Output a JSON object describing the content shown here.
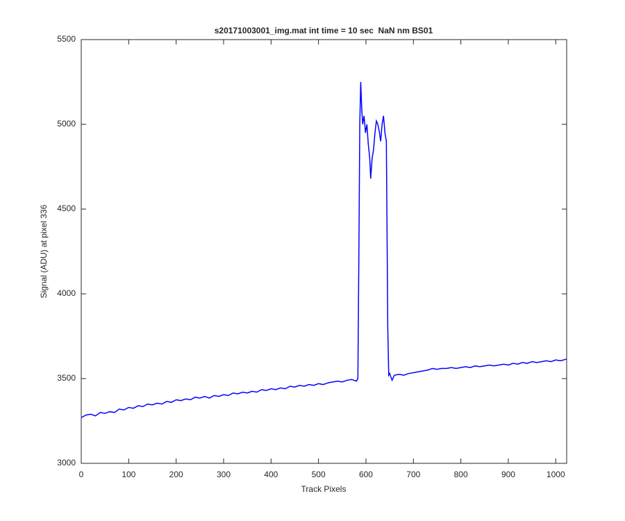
{
  "chart_data": {
    "type": "line",
    "title": "s20171003001_img.mat int time = 10 sec  NaN nm BS01",
    "x_label": "Track Pixels",
    "y_label": "Signal (ADU) at pixel 336",
    "xlim": [
      0,
      1023
    ],
    "ylim": [
      3000,
      5500
    ],
    "xticks": [
      0,
      100,
      200,
      300,
      400,
      500,
      600,
      700,
      800,
      900,
      1000
    ],
    "yticks": [
      3000,
      3500,
      4000,
      4500,
      5000,
      5500
    ],
    "grid": false,
    "series": [
      {
        "color": "#0000ff",
        "x": [
          0,
          10,
          20,
          30,
          40,
          50,
          60,
          70,
          80,
          90,
          100,
          110,
          120,
          130,
          140,
          150,
          160,
          170,
          180,
          190,
          200,
          210,
          220,
          230,
          240,
          250,
          260,
          270,
          280,
          290,
          300,
          310,
          320,
          330,
          340,
          350,
          360,
          370,
          380,
          390,
          400,
          410,
          420,
          430,
          440,
          450,
          460,
          470,
          480,
          490,
          500,
          510,
          520,
          530,
          540,
          550,
          560,
          570,
          580,
          583,
          585,
          587,
          589,
          591,
          593,
          596,
          599,
          602,
          605,
          608,
          610,
          613,
          616,
          619,
          622,
          625,
          628,
          631,
          634,
          637,
          640,
          643,
          646,
          648,
          650,
          655,
          660,
          670,
          680,
          690,
          700,
          710,
          720,
          730,
          740,
          750,
          760,
          770,
          780,
          790,
          800,
          810,
          820,
          830,
          840,
          850,
          860,
          870,
          880,
          890,
          900,
          910,
          920,
          930,
          940,
          950,
          960,
          970,
          980,
          990,
          1000,
          1010,
          1023
        ],
        "values": [
          3270,
          3285,
          3290,
          3280,
          3300,
          3295,
          3305,
          3300,
          3320,
          3315,
          3330,
          3325,
          3340,
          3335,
          3350,
          3345,
          3355,
          3350,
          3365,
          3360,
          3375,
          3370,
          3380,
          3375,
          3390,
          3385,
          3395,
          3385,
          3400,
          3395,
          3405,
          3400,
          3415,
          3410,
          3420,
          3415,
          3425,
          3420,
          3435,
          3430,
          3440,
          3435,
          3445,
          3440,
          3455,
          3450,
          3460,
          3455,
          3465,
          3460,
          3470,
          3465,
          3475,
          3480,
          3485,
          3480,
          3490,
          3495,
          3485,
          3500,
          4200,
          5000,
          5250,
          5100,
          5000,
          5050,
          4950,
          5000,
          4880,
          4800,
          4680,
          4800,
          4850,
          4950,
          5020,
          5000,
          4960,
          4900,
          5000,
          5050,
          4950,
          4900,
          3800,
          3520,
          3530,
          3490,
          3520,
          3525,
          3520,
          3530,
          3535,
          3540,
          3545,
          3550,
          3560,
          3555,
          3560,
          3560,
          3565,
          3560,
          3565,
          3570,
          3565,
          3575,
          3570,
          3575,
          3580,
          3575,
          3580,
          3585,
          3580,
          3590,
          3585,
          3595,
          3590,
          3600,
          3595,
          3600,
          3605,
          3600,
          3610,
          3605,
          3615
        ]
      }
    ]
  }
}
